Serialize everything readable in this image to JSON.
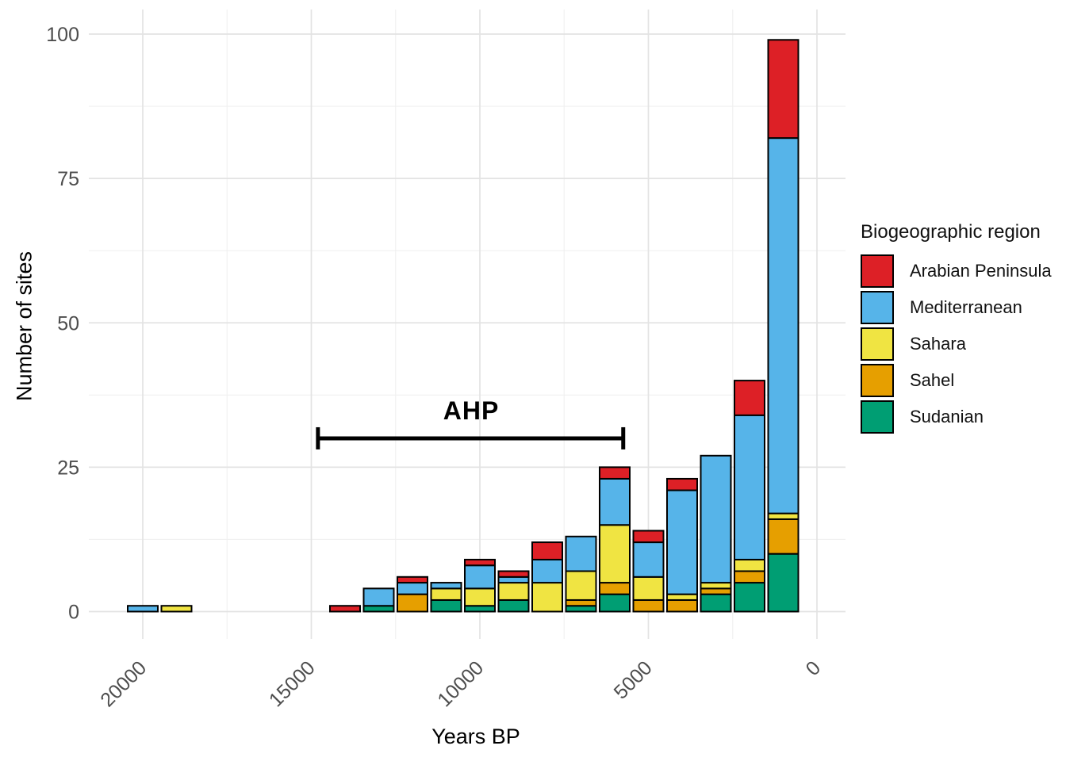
{
  "chart_data": {
    "type": "bar",
    "stacked": true,
    "xlabel": "Years BP",
    "ylabel": "Number of sites",
    "x_axis": {
      "ticks": [
        20000,
        15000,
        10000,
        5000,
        0
      ],
      "minor_ticks": [
        17500,
        12500,
        7500,
        2500
      ],
      "reversed": true,
      "range": [
        21000,
        -750
      ]
    },
    "y_axis": {
      "ticks": [
        0,
        25,
        50,
        75,
        100
      ],
      "minor_ticks": [
        12.5,
        37.5,
        62.5,
        87.5
      ],
      "range": [
        0,
        100
      ]
    },
    "grid": "on",
    "bin_width_years": 1000,
    "categories": [
      20000,
      19000,
      14000,
      13000,
      12000,
      11000,
      10000,
      9000,
      8000,
      7000,
      6000,
      5000,
      4000,
      3000,
      2000,
      1000
    ],
    "stack_order_bottom_to_top": [
      "Sudanian",
      "Sahel",
      "Sahara",
      "Mediterranean",
      "Arabian Peninsula"
    ],
    "series": [
      {
        "name": "Sudanian",
        "color": "#009E73",
        "values": [
          0,
          0,
          0,
          1,
          0,
          2,
          1,
          2,
          0,
          1,
          3,
          0,
          0,
          3,
          5,
          10
        ]
      },
      {
        "name": "Sahel",
        "color": "#E69F00",
        "values": [
          0,
          0,
          0,
          0,
          3,
          0,
          0,
          0,
          0,
          1,
          2,
          2,
          2,
          1,
          2,
          6
        ]
      },
      {
        "name": "Sahara",
        "color": "#F0E442",
        "values": [
          0,
          1,
          0,
          0,
          0,
          2,
          3,
          3,
          5,
          5,
          10,
          4,
          1,
          1,
          2,
          1
        ]
      },
      {
        "name": "Mediterranean",
        "color": "#56B4E9",
        "values": [
          1,
          0,
          0,
          3,
          2,
          1,
          4,
          1,
          4,
          6,
          8,
          6,
          18,
          22,
          25,
          65
        ]
      },
      {
        "name": "Arabian Peninsula",
        "color": "#DD2026",
        "values": [
          0,
          0,
          1,
          0,
          1,
          0,
          1,
          1,
          3,
          0,
          2,
          2,
          2,
          0,
          6,
          17
        ]
      }
    ],
    "bar_totals": [
      1,
      1,
      1,
      4,
      6,
      5,
      9,
      7,
      12,
      13,
      25,
      14,
      23,
      27,
      40,
      99
    ],
    "legend": {
      "title": "Biogeographic region",
      "position": "right",
      "order": [
        "Arabian Peninsula",
        "Mediterranean",
        "Sahara",
        "Sahel",
        "Sudanian"
      ]
    },
    "annotation": {
      "label": "AHP",
      "x_start_years": 14850,
      "x_end_years": 5700,
      "y_value": 30
    },
    "colors": {
      "bar_outline": "#000000",
      "tick_label": "#4D4D4D",
      "axis_title": "#000000",
      "grid_major": "#E3E3E3",
      "grid_minor": "#F0F0F0",
      "background": "#FFFFFF"
    }
  }
}
